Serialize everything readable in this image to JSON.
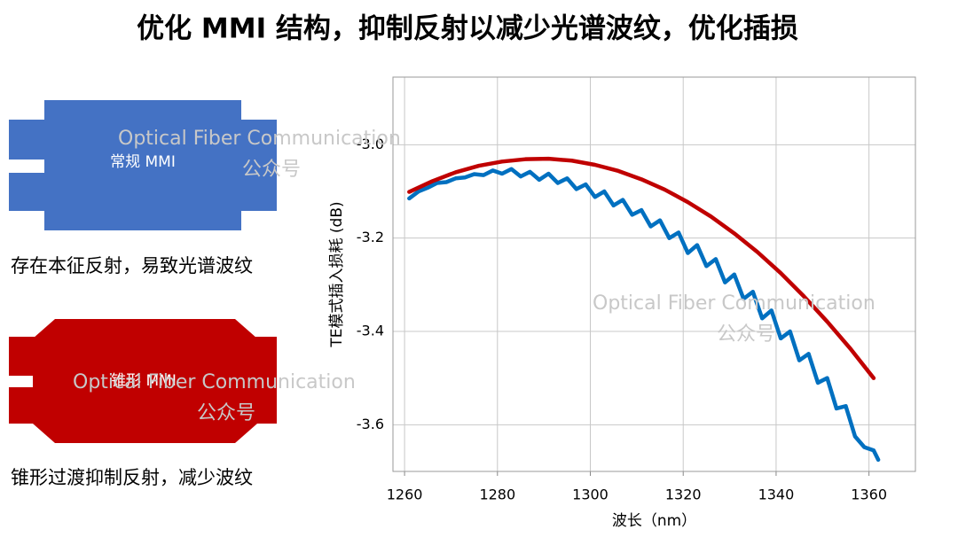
{
  "header": {
    "title": "优化 MMI 结构，抑制反射以减少光谱波纹，优化插损"
  },
  "diagrams": [
    {
      "label": "常规 MMI",
      "caption": "存在本征反射，易致光谱波纹"
    },
    {
      "label": "锥形 MMI",
      "caption": "锥形过渡抑制反射，减少波纹"
    }
  ],
  "watermarks": [
    {
      "text": "Optical Fiber Communication",
      "sub": "公众号"
    },
    {
      "text": "Optical Fiber Communication",
      "sub": "公众号"
    },
    {
      "text": "Optical Fiber Communication",
      "sub": "公众号"
    }
  ],
  "chart_data": {
    "type": "line",
    "x_label": "波长（nm）",
    "y_label": "TE模式插入损耗 (dB)",
    "xlim": [
      1257.5,
      1370
    ],
    "ylim": [
      -3.7,
      -2.855
    ],
    "xticks": [
      1260,
      1280,
      1300,
      1320,
      1340,
      1360
    ],
    "yticks": [
      {
        "value": -3,
        "label": "-3.0"
      },
      -3.2,
      -3.4,
      -3.6
    ],
    "grid": true,
    "series": [
      {
        "color": "#0070c0",
        "x": [
          1261,
          1263,
          1265,
          1267,
          1269,
          1271,
          1273,
          1275,
          1277,
          1279,
          1281,
          1283,
          1285,
          1287,
          1289,
          1291,
          1293,
          1295,
          1297,
          1299,
          1301,
          1303,
          1305,
          1307,
          1309,
          1311,
          1313,
          1315,
          1317,
          1319,
          1321,
          1323,
          1325,
          1327,
          1329,
          1331,
          1333,
          1335,
          1337,
          1339,
          1341,
          1343,
          1345,
          1347,
          1349,
          1351,
          1353,
          1355,
          1357,
          1359,
          1361,
          1362
        ],
        "values": [
          -3.115,
          -3.1,
          -3.092,
          -3.082,
          -3.08,
          -3.072,
          -3.07,
          -3.063,
          -3.065,
          -3.055,
          -3.062,
          -3.052,
          -3.068,
          -3.058,
          -3.075,
          -3.062,
          -3.082,
          -3.072,
          -3.095,
          -3.085,
          -3.112,
          -3.1,
          -3.13,
          -3.118,
          -3.15,
          -3.14,
          -3.175,
          -3.162,
          -3.2,
          -3.188,
          -3.232,
          -3.215,
          -3.26,
          -3.245,
          -3.295,
          -3.278,
          -3.33,
          -3.315,
          -3.372,
          -3.355,
          -3.415,
          -3.4,
          -3.462,
          -3.448,
          -3.51,
          -3.5,
          -3.565,
          -3.56,
          -3.625,
          -3.648,
          -3.655,
          -3.675
        ]
      },
      {
        "color": "#c00000",
        "x": [
          1261,
          1266,
          1271,
          1276,
          1281,
          1286,
          1291,
          1296,
          1301,
          1306,
          1311,
          1316,
          1321,
          1326,
          1331,
          1336,
          1341,
          1346,
          1351,
          1356,
          1361
        ],
        "values": [
          -3.101,
          -3.078,
          -3.059,
          -3.045,
          -3.036,
          -3.031,
          -3.03,
          -3.034,
          -3.043,
          -3.056,
          -3.074,
          -3.096,
          -3.123,
          -3.154,
          -3.19,
          -3.23,
          -3.275,
          -3.325,
          -3.379,
          -3.437,
          -3.5
        ]
      }
    ]
  }
}
